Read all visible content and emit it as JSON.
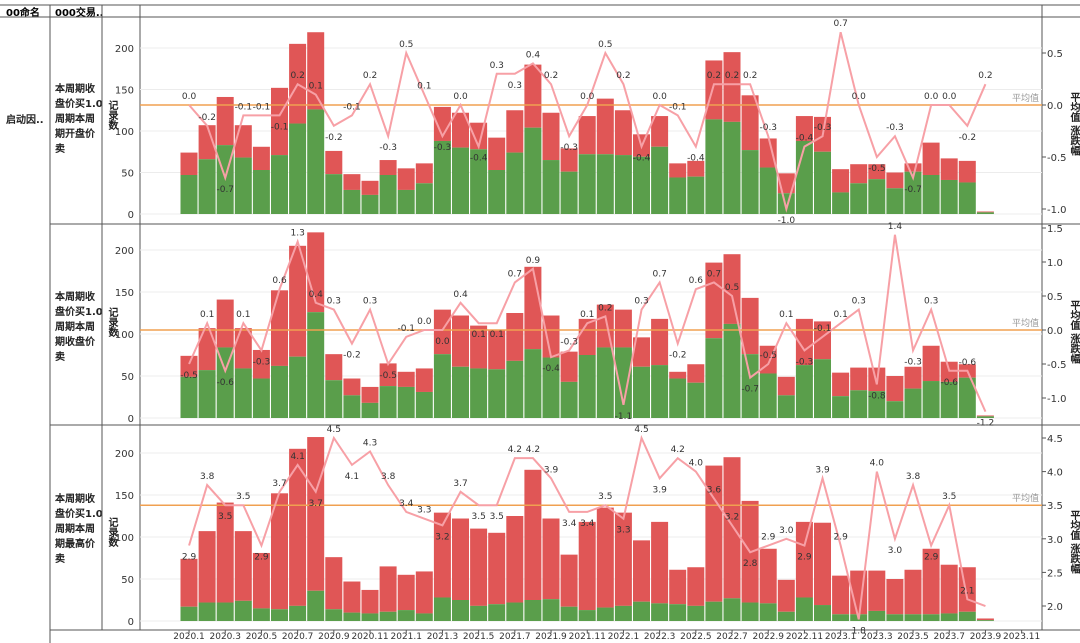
{
  "table_header": {
    "col1": "00命名",
    "col2": "000交易.."
  },
  "row_group_label": "启动因..",
  "chart_data": [
    {
      "type": "bar+line",
      "row_label": "本周期收盘价买1.0周期本周期开盘价卖",
      "y_left_label": "记录数",
      "y_right_label": "平均值 涨跌幅",
      "avg_label": "平均值",
      "y_left_ticks": [
        0,
        50,
        100,
        150,
        200
      ],
      "y_right_ticks": [
        0.5,
        0.0,
        -0.5,
        -1.0
      ],
      "y_left_range": [
        0,
        225
      ],
      "y_right_range": [
        -1.12,
        0.85
      ],
      "avg_line_value": 0.0,
      "bars_total": [
        74,
        107,
        141,
        107,
        81,
        152,
        205,
        219,
        76,
        48,
        40,
        65,
        55,
        61,
        129,
        122,
        110,
        92,
        125,
        180,
        122,
        79,
        118,
        139,
        125,
        96,
        118,
        61,
        64,
        185,
        195,
        143,
        91,
        49,
        118,
        117,
        54,
        60,
        60,
        50,
        61,
        86,
        67,
        64,
        3
      ],
      "bars_green": [
        47,
        66,
        83,
        68,
        53,
        71,
        109,
        126,
        48,
        29,
        23,
        47,
        29,
        37,
        88,
        80,
        78,
        53,
        74,
        104,
        65,
        51,
        72,
        72,
        71,
        69,
        81,
        44,
        45,
        114,
        111,
        77,
        56,
        25,
        88,
        75,
        26,
        37,
        42,
        31,
        51,
        47,
        41,
        38,
        2
      ],
      "line": [
        0.0,
        -0.2,
        -0.7,
        -0.1,
        -0.1,
        -0.1,
        0.2,
        0.1,
        -0.2,
        -0.1,
        0.2,
        -0.3,
        0.5,
        0.1,
        -0.3,
        0.0,
        -0.4,
        0.3,
        0.3,
        0.4,
        0.2,
        -0.3,
        0.0,
        0.5,
        0.2,
        -0.4,
        0.0,
        -0.1,
        -0.4,
        0.2,
        0.2,
        0.2,
        -0.3,
        -1.0,
        -0.4,
        -0.3,
        0.7,
        0.0,
        -0.5,
        -0.3,
        -0.7,
        0.0,
        0.0,
        -0.2,
        0.2
      ],
      "line_labels": [
        "0.0",
        "-0.2",
        "-0.7",
        "-0.1",
        "-0.1",
        "-0.1",
        "0.2",
        "0.1",
        "-0.2",
        "-0.1",
        "0.2",
        "-0.3",
        "0.5",
        "0.1",
        "-0.3",
        "0.0",
        "-0.4",
        "0.3",
        "0.3",
        "0.4",
        "0.2",
        "-0.3",
        "0.0",
        "0.5",
        "0.2",
        "-0.4",
        "0.0",
        "-0.1",
        "-0.4",
        "0.2",
        "0.2",
        "0.2",
        "-0.3",
        "-1.0",
        "-0.4",
        "-0.3",
        "0.7",
        "0.0",
        "-0.5",
        "-0.3",
        "-0.7",
        "0.0",
        "0.0",
        "-0.2",
        "0.2"
      ]
    },
    {
      "type": "bar+line",
      "row_label": "本周期收盘价买1.0周期本周期收盘价卖",
      "y_left_label": "记录数",
      "y_right_label": "平均值 涨跌幅",
      "avg_label": "平均值",
      "y_left_ticks": [
        0,
        50,
        100,
        150,
        200
      ],
      "y_right_ticks": [
        1.5,
        1.0,
        0.5,
        0.0,
        -0.5,
        -1.0
      ],
      "y_left_range": [
        0,
        232
      ],
      "y_right_range": [
        -1.3,
        1.55
      ],
      "avg_line_value": 0.0,
      "bars_total": [
        74,
        107,
        141,
        107,
        81,
        152,
        205,
        221,
        76,
        47,
        37,
        65,
        55,
        59,
        129,
        122,
        110,
        105,
        125,
        180,
        122,
        79,
        118,
        135,
        129,
        96,
        118,
        55,
        64,
        185,
        195,
        143,
        86,
        49,
        118,
        115,
        54,
        60,
        60,
        50,
        61,
        86,
        67,
        64,
        3
      ],
      "bars_green": [
        49,
        57,
        84,
        59,
        47,
        62,
        73,
        126,
        45,
        27,
        18,
        38,
        37,
        31,
        76,
        61,
        59,
        58,
        68,
        82,
        72,
        43,
        75,
        84,
        84,
        61,
        63,
        47,
        42,
        95,
        112,
        76,
        53,
        27,
        63,
        70,
        26,
        33,
        32,
        20,
        35,
        44,
        43,
        48,
        2
      ],
      "line": [
        -0.5,
        0.1,
        -0.6,
        0.1,
        -0.3,
        0.6,
        1.3,
        0.4,
        0.3,
        -0.2,
        0.3,
        -0.5,
        -0.1,
        0.0,
        0.0,
        0.4,
        0.1,
        0.1,
        0.7,
        0.9,
        -0.4,
        -0.3,
        0.1,
        0.2,
        -1.1,
        0.3,
        0.7,
        -0.2,
        0.6,
        0.7,
        0.5,
        -0.7,
        -0.5,
        0.1,
        -0.3,
        -0.1,
        0.1,
        0.3,
        -0.8,
        1.4,
        -0.3,
        0.3,
        -0.6,
        -0.6,
        -1.2
      ],
      "line_labels": [
        "-0.5",
        "0.1",
        "-0.6",
        "0.1",
        "-0.3",
        "0.6",
        "1.3",
        "0.4",
        "0.3",
        "-0.2",
        "0.3",
        "-0.5",
        "-0.1",
        "0.0",
        "0.0",
        "0.4",
        "0.1",
        "0.1",
        "0.7",
        "0.9",
        "-0.4",
        "-0.3",
        "0.1",
        "0.2",
        "-1.1",
        "0.3",
        "0.7",
        "-0.2",
        "0.6",
        "0.7",
        "0.5",
        "-0.7",
        "-0.5",
        "0.1",
        "-0.3",
        "-0.1",
        "0.1",
        "0.3",
        "-0.8",
        "1.4",
        "-0.3",
        "0.3",
        "-0.6",
        "-0.6",
        "-1.2"
      ]
    },
    {
      "type": "bar+line",
      "row_label": "本周期收盘价买1.0周期本周期最高价卖",
      "y_left_label": "记录数",
      "y_right_label": "平均值 涨跌幅",
      "avg_label": "平均值",
      "y_left_ticks": [
        0,
        50,
        100,
        150,
        200
      ],
      "y_right_ticks": [
        4.5,
        4.0,
        3.5,
        3.0,
        2.5,
        2.0
      ],
      "y_left_range": [
        0,
        228
      ],
      "y_right_range": [
        1.75,
        4.6
      ],
      "avg_line_value": 3.5,
      "bars_total": [
        74,
        107,
        141,
        107,
        81,
        152,
        205,
        219,
        76,
        47,
        37,
        65,
        55,
        59,
        129,
        122,
        110,
        105,
        125,
        180,
        122,
        79,
        118,
        135,
        129,
        96,
        118,
        61,
        64,
        185,
        195,
        143,
        86,
        49,
        118,
        117,
        54,
        60,
        60,
        50,
        61,
        86,
        67,
        64,
        3
      ],
      "bars_green": [
        17,
        22,
        22,
        24,
        15,
        14,
        18,
        36,
        14,
        10,
        9,
        11,
        13,
        9,
        28,
        25,
        18,
        20,
        22,
        25,
        26,
        17,
        13,
        16,
        18,
        23,
        21,
        20,
        18,
        23,
        27,
        22,
        21,
        11,
        28,
        19,
        8,
        8,
        12,
        8,
        8,
        8,
        9,
        11,
        1
      ],
      "line": [
        2.9,
        3.8,
        3.5,
        3.5,
        2.9,
        3.7,
        4.1,
        3.7,
        4.5,
        4.1,
        4.3,
        3.8,
        3.4,
        3.3,
        3.2,
        3.7,
        3.5,
        3.5,
        4.2,
        4.2,
        3.9,
        3.4,
        3.4,
        3.5,
        3.3,
        4.5,
        3.9,
        4.2,
        4.0,
        3.6,
        3.2,
        2.8,
        2.9,
        3.0,
        2.9,
        3.9,
        2.9,
        1.8,
        4.0,
        3.0,
        3.8,
        2.9,
        3.5,
        2.1,
        2.0
      ],
      "line_labels": [
        "2.9",
        "3.8",
        "3.5",
        "3.5",
        "2.9",
        "3.7",
        "4.1",
        "3.7",
        "4.5",
        "4.1",
        "4.3",
        "3.8",
        "3.4",
        "3.3",
        "3.2",
        "3.7",
        "3.5",
        "3.5",
        "4.2",
        "4.2",
        "3.9",
        "3.4",
        "3.4",
        "3.5",
        "3.3",
        "4.5",
        "3.9",
        "4.2",
        "4.0",
        "3.6",
        "3.2",
        "2.8",
        "2.9",
        "3.0",
        "2.9",
        "3.9",
        "2.9",
        "1.8",
        "4.0",
        "3.0",
        "3.8",
        "2.9",
        "3.5",
        "2.1",
        ""
      ]
    }
  ],
  "x_axis_ticks": [
    "2020.1",
    "2020.3",
    "2020.5",
    "2020.7",
    "2020.9",
    "2020.11",
    "2021.1",
    "2021.3",
    "2021.5",
    "2021.7",
    "2021.9",
    "2021.11",
    "2022.1",
    "2022.3",
    "2022.5",
    "2022.7",
    "2022.9",
    "2022.11",
    "2023.1",
    "2023.3",
    "2023.5",
    "2023.7",
    "2023.9",
    "2023.11"
  ],
  "colors": {
    "bar_red": "#e05656",
    "bar_green": "#5a9e4b",
    "line": "#f7a0a6",
    "avg_line": "#f0a050",
    "avg_text": "#999999",
    "grid": "#ececec",
    "border": "#555555"
  }
}
